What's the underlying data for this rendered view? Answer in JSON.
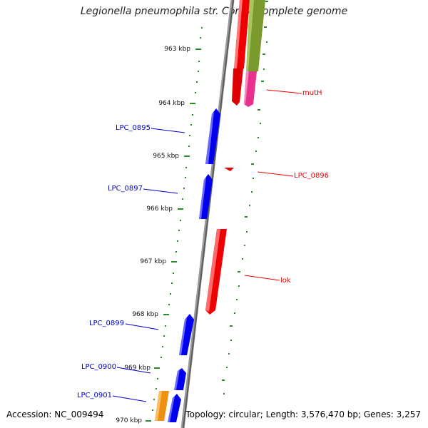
{
  "title": "Legionella pneumophila str. Corby, complete genome",
  "footer": {
    "accession": "Accession: NC_009494",
    "summary": "Topology: circular; Length: 3,576,470 bp; Genes: 3,257"
  },
  "ticks": [
    "963 kbp",
    "964 kbp",
    "965 kbp",
    "966 kbp",
    "967 kbp",
    "968 kbp",
    "969 kbp",
    "970 kbp"
  ],
  "genes": {
    "mutH": "mutH",
    "LPC_0895": "LPC_0895",
    "LPC_0896": "LPC_0896",
    "LPC_0897": "LPC_0897",
    "lok": "lok",
    "LPC_0899": "LPC_0899",
    "LPC_0900": "LPC_0900",
    "LPC_0901": "LPC_0901"
  },
  "colors": {
    "forward": "#0000ee",
    "reverse": "#ee0000",
    "olive": "#7a9a2e",
    "magenta": "#e8308f",
    "orange": "#f09010",
    "backbone": "#8c8c8c",
    "tick": "#2a8a2a"
  }
}
